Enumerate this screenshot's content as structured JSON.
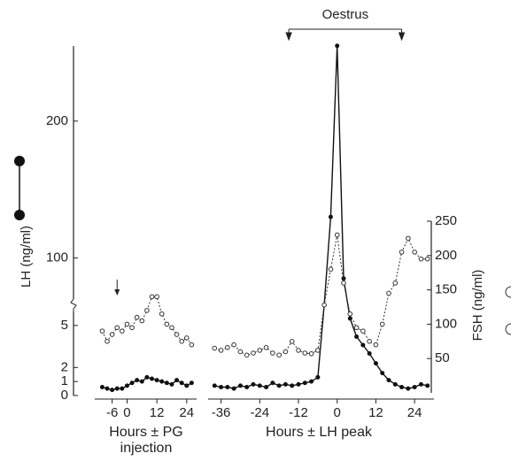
{
  "chart_data": [
    {
      "type": "line",
      "ylabel": "LH (ng/ml)",
      "xlabel": "Hours ± PG injection",
      "x": [
        -10,
        -8,
        -6,
        -4,
        -2,
        0,
        2,
        4,
        6,
        8,
        10,
        12,
        14,
        16,
        18,
        20,
        22,
        24,
        26
      ],
      "xlim": [
        -13,
        28
      ],
      "xticks": [
        -6,
        0,
        12,
        24
      ],
      "ylim": [
        0,
        260
      ],
      "ybreak": [
        6,
        70
      ],
      "yticks": [
        0,
        1,
        2,
        5,
        100,
        200
      ],
      "arrow_x": -4,
      "series": [
        {
          "color": "#111",
          "marker": "filled",
          "values": [
            0.6,
            0.5,
            0.4,
            0.5,
            0.5,
            0.7,
            0.9,
            1.1,
            1.0,
            1.3,
            1.2,
            1.1,
            1.0,
            0.9,
            0.8,
            1.1,
            0.9,
            0.7,
            0.9
          ]
        },
        {
          "color": "#333",
          "marker": "open",
          "dashed": true,
          "axis": "y2",
          "values": [
            90,
            75,
            85,
            95,
            90,
            100,
            95,
            110,
            105,
            120,
            140,
            140,
            115,
            100,
            95,
            85,
            75,
            80,
            70
          ]
        }
      ]
    },
    {
      "type": "line",
      "xlabel": "Hours ± LH peak",
      "y2label": "FSH (ng/ml)",
      "x": [
        -38,
        -36,
        -34,
        -32,
        -30,
        -28,
        -26,
        -24,
        -22,
        -20,
        -18,
        -16,
        -14,
        -12,
        -10,
        -8,
        -6,
        -4,
        -2,
        0,
        2,
        4,
        6,
        8,
        10,
        12,
        14,
        16,
        18,
        20,
        22,
        24,
        26,
        28
      ],
      "xlim": [
        -40,
        30
      ],
      "xticks": [
        -36,
        -24,
        -12,
        0,
        12,
        24
      ],
      "y2lim": [
        0,
        250
      ],
      "y2ticks": [
        50,
        100,
        150,
        200,
        250
      ],
      "oestrus": {
        "label": "Oestrus",
        "x": [
          -15,
          20
        ]
      },
      "series": [
        {
          "color": "#111",
          "marker": "filled",
          "values": [
            0.7,
            0.6,
            0.6,
            0.5,
            0.7,
            0.6,
            0.8,
            0.7,
            0.6,
            0.9,
            0.7,
            0.8,
            0.7,
            0.8,
            0.9,
            1.0,
            1.3,
            40,
            130,
            255,
            85,
            5.5,
            4.2,
            3.6,
            3.0,
            2.3,
            1.6,
            1.1,
            0.8,
            0.6,
            0.5,
            0.6,
            0.8,
            0.7
          ]
        },
        {
          "color": "#333",
          "marker": "open",
          "dashed": true,
          "axis": "y2",
          "values": [
            65,
            62,
            66,
            70,
            60,
            55,
            58,
            62,
            66,
            58,
            55,
            60,
            75,
            62,
            58,
            57,
            62,
            128,
            180,
            230,
            160,
            115,
            95,
            90,
            75,
            70,
            100,
            145,
            160,
            205,
            225,
            205,
            195,
            195
          ]
        }
      ]
    }
  ]
}
